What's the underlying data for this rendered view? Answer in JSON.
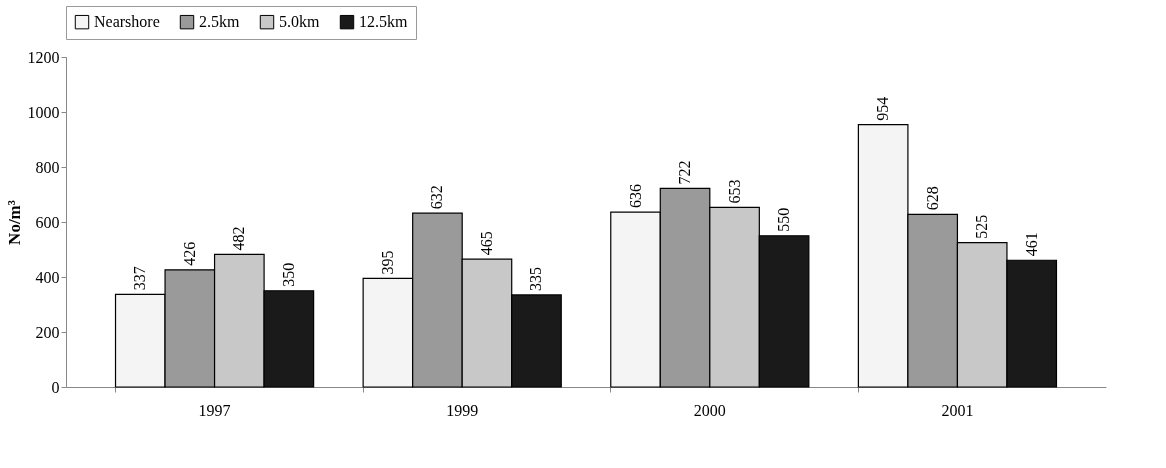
{
  "chart_data": {
    "type": "bar",
    "ylabel": "No/m³",
    "categories": [
      "1997",
      "1999",
      "2000",
      "2001"
    ],
    "series": [
      {
        "name": "Nearshore",
        "color": "#f4f4f4",
        "values": [
          337,
          395,
          636,
          954
        ]
      },
      {
        "name": "2.5km",
        "color": "#9a9a9a",
        "values": [
          426,
          632,
          722,
          628
        ]
      },
      {
        "name": "5.0km",
        "color": "#c8c8c8",
        "values": [
          482,
          465,
          653,
          525
        ]
      },
      {
        "name": "12.5km",
        "color": "#1a1a1a",
        "values": [
          350,
          335,
          550,
          461
        ]
      }
    ],
    "ylim": [
      0,
      1200
    ],
    "yticks": [
      0,
      200,
      400,
      600,
      800,
      1000,
      1200
    ],
    "grid": false,
    "legend": "top",
    "data_labels": true
  }
}
